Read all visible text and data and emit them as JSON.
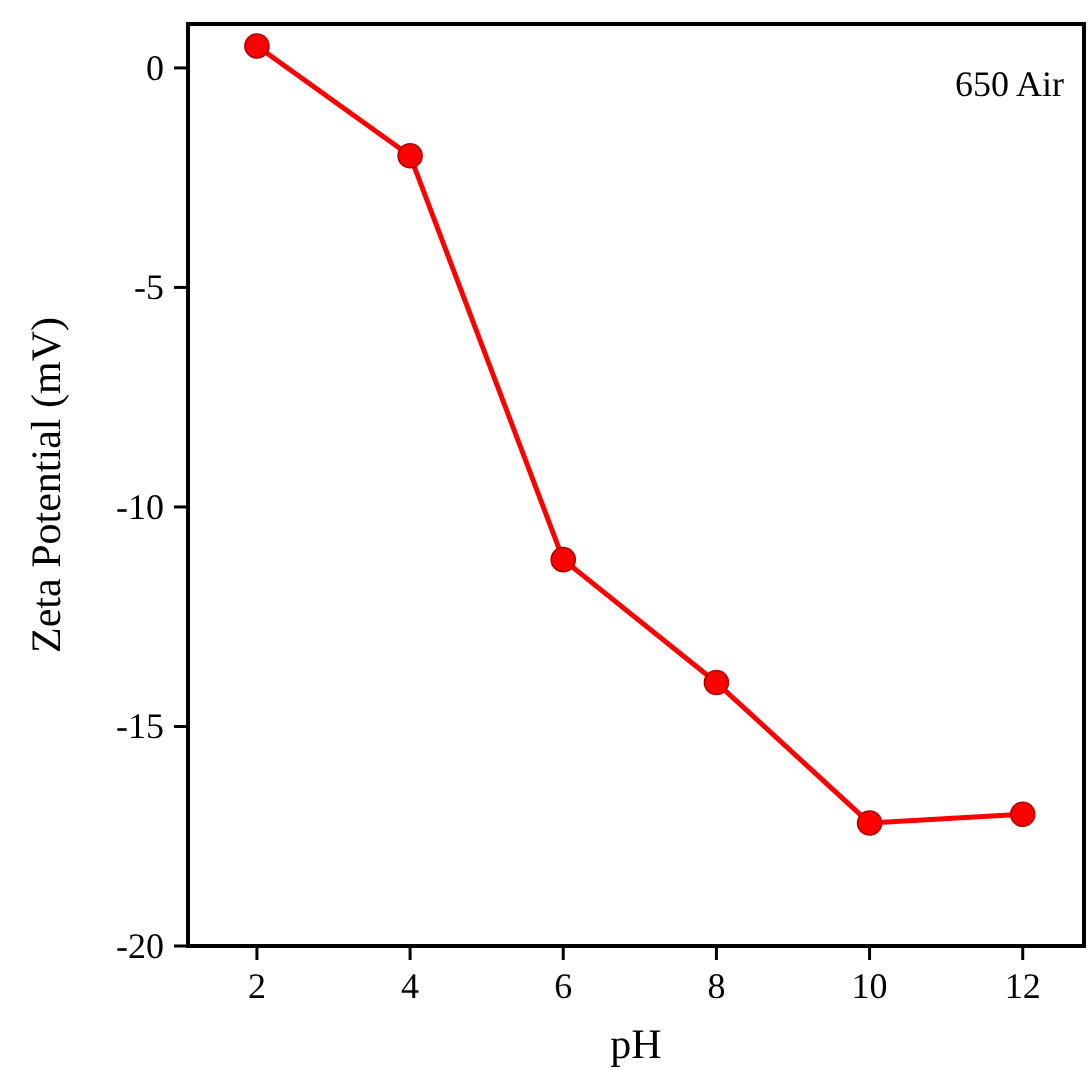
{
  "chart_data": {
    "type": "line",
    "xlabel": "pH",
    "ylabel": "Zeta Potential (mV)",
    "annotations": [
      "650 Air"
    ],
    "x": [
      2,
      4,
      6,
      8,
      10,
      12
    ],
    "series": [
      {
        "color": "#ff0000",
        "values": [
          0.5,
          -2.0,
          -11.2,
          -14.0,
          -17.2,
          -17.0
        ]
      }
    ],
    "xlim": [
      1.1,
      12.8
    ],
    "xticks": [
      2,
      4,
      6,
      8,
      10,
      12
    ],
    "ylim": [
      -20,
      1
    ],
    "yticks": [
      0,
      -5,
      -10,
      -15,
      -20
    ],
    "grid": false,
    "marker": "circle",
    "line_style": "solid"
  }
}
